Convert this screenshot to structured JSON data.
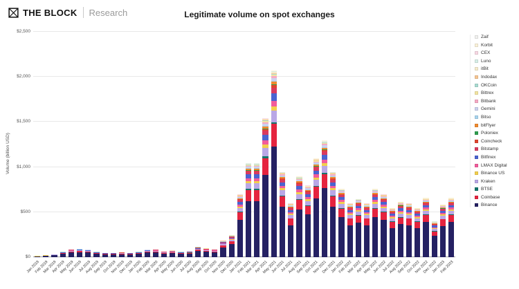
{
  "header": {
    "brand": "THE BLOCK",
    "brand_sub": "Research"
  },
  "chart": {
    "title": "Legitimate volume on spot exchanges",
    "y_axis_label": "Volume (billion USD)"
  },
  "chart_data": {
    "type": "bar",
    "stacked": true,
    "title": "Legitimate volume on spot exchanges",
    "xlabel": "",
    "ylabel": "Volume (billion USD)",
    "ylim": [
      0,
      2500
    ],
    "y_tick_values": [
      0,
      500,
      1000,
      1500,
      2000,
      2500
    ],
    "y_tick_labels": [
      "$0",
      "$500",
      "$1,000",
      "$1,500",
      "$2,000",
      "$2,500"
    ],
    "grid": true,
    "legend_position": "right",
    "categories": [
      "Jan 2019",
      "Feb 2019",
      "Mar 2019",
      "Apr 2019",
      "May 2019",
      "Jun 2019",
      "Jul 2019",
      "Aug 2019",
      "Sep 2019",
      "Oct 2019",
      "Nov 2019",
      "Dec 2019",
      "Jan 2020",
      "Feb 2020",
      "Mar 2020",
      "Apr 2020",
      "May 2020",
      "Jun 2020",
      "Jul 2020",
      "Aug 2020",
      "Sep 2020",
      "Oct 2020",
      "Nov 2020",
      "Dec 2020",
      "Jan 2021",
      "Feb 2021",
      "Mar 2021",
      "Apr 2021",
      "May 2021",
      "Jun 2021",
      "Jul 2021",
      "Aug 2021",
      "Sep 2021",
      "Oct 2021",
      "Nov 2021",
      "Dec 2021",
      "Jan 2022",
      "Feb 2022",
      "Mar 2022",
      "Apr 2022",
      "May 2022",
      "Jun 2022",
      "Jul 2022",
      "Aug 2022",
      "Sep 2022",
      "Oct 2022",
      "Nov 2022",
      "Dec 2022",
      "Jan 2023",
      "Feb 2023"
    ],
    "totals_billion_usd": [
      15,
      25,
      35,
      60,
      90,
      95,
      85,
      60,
      50,
      50,
      55,
      50,
      60,
      85,
      90,
      65,
      75,
      60,
      70,
      115,
      100,
      90,
      185,
      250,
      700,
      1050,
      1050,
      1550,
      2080,
      950,
      600,
      900,
      800,
      1100,
      1300,
      950,
      760,
      600,
      650,
      600,
      760,
      700,
      550,
      620,
      600,
      550,
      660,
      400,
      590,
      660
    ],
    "series_note": "Stacked exchange composition estimated from bar segment proportions; 'share' is each exchange's approximate fraction of the monthly total. Stack order is bottom-to-top.",
    "series": [
      {
        "name": "Binance",
        "color": "#252163",
        "share": 0.59
      },
      {
        "name": "Coinbase",
        "color": "#e5243f",
        "share": 0.12
      },
      {
        "name": "BTSE",
        "color": "#12766b",
        "share": 0.01
      },
      {
        "name": "Kraken",
        "color": "#b9a7e6",
        "share": 0.06
      },
      {
        "name": "Binance US",
        "color": "#f2cf4d",
        "share": 0.025
      },
      {
        "name": "LMAX Digital",
        "color": "#f25c9b",
        "share": 0.03
      },
      {
        "name": "Bitfinex",
        "color": "#4a63d0",
        "share": 0.04
      },
      {
        "name": "Bitstamp",
        "color": "#d93a5f",
        "share": 0.03
      },
      {
        "name": "Coincheck",
        "color": "#e0452e",
        "share": 0.012
      },
      {
        "name": "Poloniex",
        "color": "#2f9e4f",
        "share": 0.006
      },
      {
        "name": "bitFlyer",
        "color": "#f08a2e",
        "share": 0.012
      },
      {
        "name": "Bitso",
        "color": "#a8d4ee",
        "share": 0.006
      },
      {
        "name": "Gemini",
        "color": "#ccd2ee",
        "share": 0.015
      },
      {
        "name": "Bitbank",
        "color": "#f6aac4",
        "share": 0.01
      },
      {
        "name": "Bittrex",
        "color": "#f3e5a2",
        "share": 0.008
      },
      {
        "name": "OKCoin",
        "color": "#a9dcd2",
        "share": 0.005
      },
      {
        "name": "Indodax",
        "color": "#f6c693",
        "share": 0.004
      },
      {
        "name": "itBit",
        "color": "#f6eccd",
        "share": 0.005
      },
      {
        "name": "Luno",
        "color": "#d8efe8",
        "share": 0.004
      },
      {
        "name": "CEX",
        "color": "#f8d9e4",
        "share": 0.002
      },
      {
        "name": "Korbit",
        "color": "#fbf2da",
        "share": 0.002
      },
      {
        "name": "Zaif",
        "color": "#f2f2f0",
        "share": 0.001
      }
    ],
    "legend_order_top_to_bottom": [
      "Zaif",
      "Korbit",
      "CEX",
      "Luno",
      "itBit",
      "Indodax",
      "OKCoin",
      "Bittrex",
      "Bitbank",
      "Gemini",
      "Bitso",
      "bitFlyer",
      "Poloniex",
      "Coincheck",
      "Bitstamp",
      "Bitfinex",
      "LMAX Digital",
      "Binance US",
      "Kraken",
      "BTSE",
      "Coinbase",
      "Binance"
    ]
  }
}
